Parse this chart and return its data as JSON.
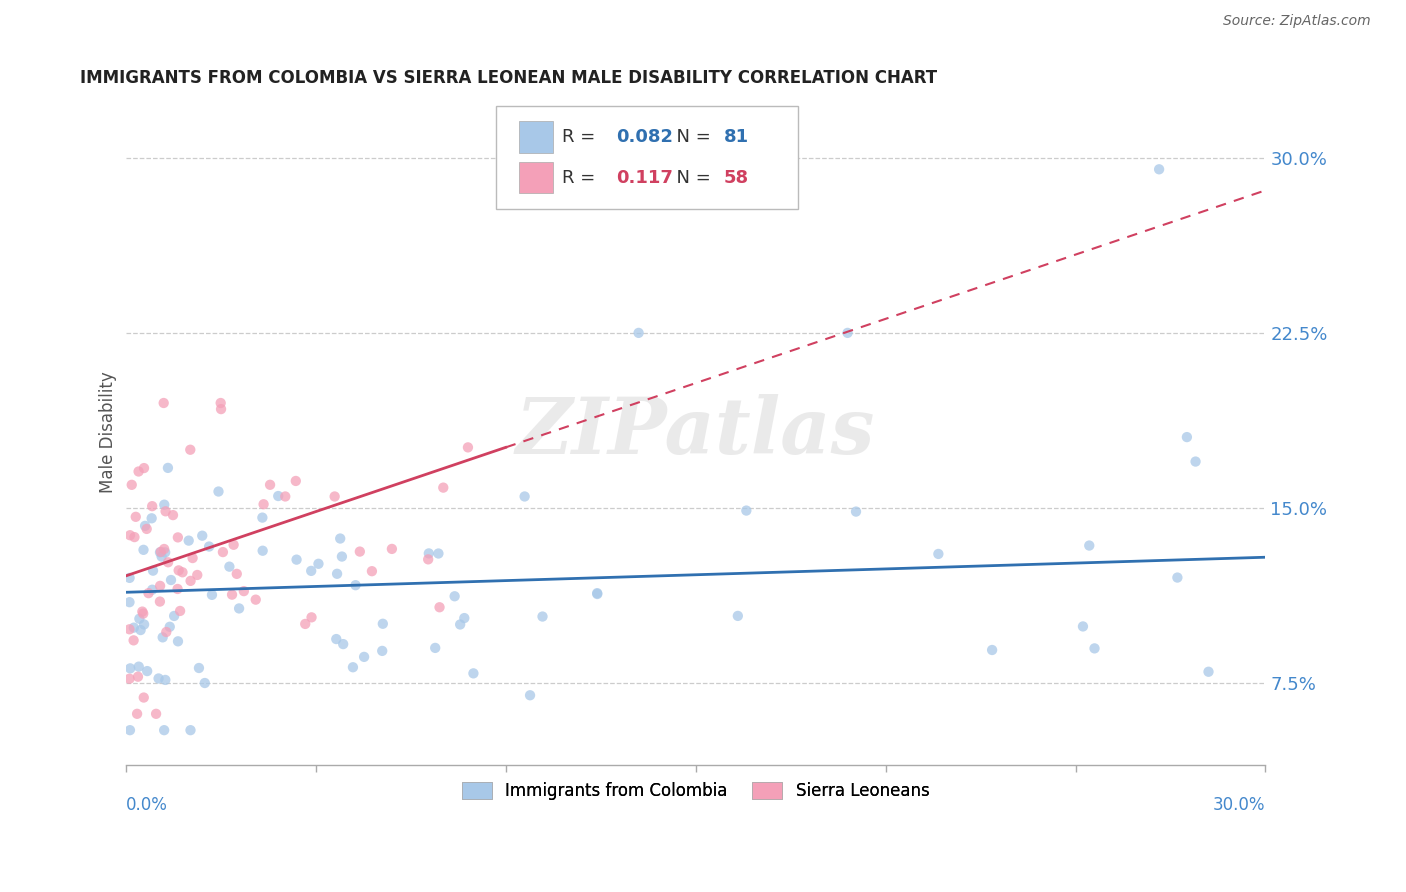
{
  "title": "IMMIGRANTS FROM COLOMBIA VS SIERRA LEONEAN MALE DISABILITY CORRELATION CHART",
  "source": "Source: ZipAtlas.com",
  "ylabel": "Male Disability",
  "ytick_labels": [
    "7.5%",
    "15.0%",
    "22.5%",
    "30.0%"
  ],
  "ytick_values": [
    0.075,
    0.15,
    0.225,
    0.3
  ],
  "xlim": [
    0.0,
    0.3
  ],
  "ylim": [
    0.04,
    0.325
  ],
  "legend1_r": "0.082",
  "legend1_n": "81",
  "legend2_r": "0.117",
  "legend2_n": "58",
  "color_blue": "#a8c8e8",
  "color_pink": "#f4a0b8",
  "color_blue_line": "#3070b0",
  "color_pink_line": "#d04060",
  "watermark": "ZIPatlas"
}
